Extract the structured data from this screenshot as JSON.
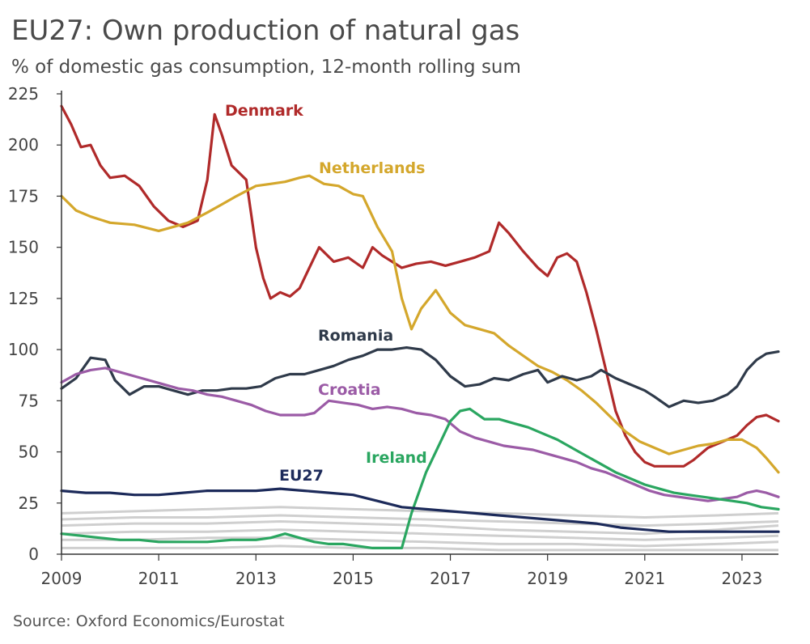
{
  "title": "EU27: Own production of natural gas",
  "subtitle": "% of domestic gas consumption, 12-month rolling sum",
  "source": "Source: Oxford Economics/Eurostat",
  "chart_data": {
    "type": "line",
    "title": "EU27: Own production of natural gas",
    "subtitle": "% of domestic gas consumption, 12-month rolling sum",
    "xlabel": "",
    "ylabel": "",
    "xlim": [
      2009.0,
      2023.75
    ],
    "ylim": [
      0,
      225
    ],
    "x_ticks": [
      "2009",
      "2011",
      "2013",
      "2015",
      "2017",
      "2019",
      "2021",
      "2023"
    ],
    "y_ticks": [
      "0",
      "25",
      "50",
      "75",
      "100",
      "125",
      "150",
      "175",
      "200",
      "225"
    ],
    "grid": false,
    "legend": "inline labels",
    "series": [
      {
        "name": "Denmark",
        "color": "#b02a2a",
        "x": [
          2009.0,
          2009.2,
          2009.4,
          2009.6,
          2009.8,
          2010.0,
          2010.3,
          2010.6,
          2010.9,
          2011.2,
          2011.5,
          2011.8,
          2012.0,
          2012.15,
          2012.3,
          2012.5,
          2012.8,
          2013.0,
          2013.15,
          2013.3,
          2013.5,
          2013.7,
          2013.9,
          2014.1,
          2014.3,
          2014.6,
          2014.9,
          2015.2,
          2015.4,
          2015.6,
          2015.8,
          2016.0,
          2016.3,
          2016.6,
          2016.9,
          2017.2,
          2017.5,
          2017.8,
          2018.0,
          2018.2,
          2018.5,
          2018.8,
          2019.0,
          2019.2,
          2019.4,
          2019.6,
          2019.8,
          2020.0,
          2020.2,
          2020.4,
          2020.6,
          2020.8,
          2021.0,
          2021.2,
          2021.5,
          2021.8,
          2022.0,
          2022.3,
          2022.6,
          2022.9,
          2023.1,
          2023.3,
          2023.5,
          2023.75
        ],
        "values": [
          219,
          210,
          199,
          200,
          190,
          184,
          185,
          180,
          170,
          163,
          160,
          163,
          183,
          215,
          205,
          190,
          183,
          150,
          135,
          125,
          128,
          126,
          130,
          140,
          150,
          143,
          145,
          140,
          150,
          146,
          143,
          140,
          142,
          143,
          141,
          143,
          145,
          148,
          162,
          157,
          148,
          140,
          136,
          145,
          147,
          143,
          128,
          110,
          90,
          70,
          58,
          50,
          45,
          43,
          43,
          43,
          46,
          52,
          55,
          58,
          63,
          67,
          68,
          65
        ]
      },
      {
        "name": "Netherlands",
        "color": "#d4a72c",
        "x": [
          2009.0,
          2009.3,
          2009.6,
          2010.0,
          2010.5,
          2011.0,
          2011.3,
          2011.6,
          2012.0,
          2012.3,
          2012.6,
          2013.0,
          2013.3,
          2013.6,
          2013.9,
          2014.1,
          2014.4,
          2014.7,
          2015.0,
          2015.2,
          2015.5,
          2015.8,
          2016.0,
          2016.2,
          2016.4,
          2016.7,
          2017.0,
          2017.3,
          2017.6,
          2017.9,
          2018.2,
          2018.5,
          2018.8,
          2019.1,
          2019.4,
          2019.7,
          2020.0,
          2020.3,
          2020.6,
          2020.9,
          2021.2,
          2021.5,
          2021.8,
          2022.1,
          2022.4,
          2022.7,
          2023.0,
          2023.3,
          2023.5,
          2023.75
        ],
        "values": [
          175,
          168,
          165,
          162,
          161,
          158,
          160,
          162,
          167,
          171,
          175,
          180,
          181,
          182,
          184,
          185,
          181,
          180,
          176,
          175,
          160,
          148,
          125,
          110,
          120,
          129,
          118,
          112,
          110,
          108,
          102,
          97,
          92,
          89,
          85,
          80,
          74,
          67,
          60,
          55,
          52,
          49,
          51,
          53,
          54,
          56,
          56,
          52,
          47,
          40
        ]
      },
      {
        "name": "Romania",
        "color": "#2f3a4a",
        "x": [
          2009.0,
          2009.3,
          2009.6,
          2009.9,
          2010.1,
          2010.4,
          2010.7,
          2011.0,
          2011.3,
          2011.6,
          2011.9,
          2012.2,
          2012.5,
          2012.8,
          2013.1,
          2013.4,
          2013.7,
          2014.0,
          2014.3,
          2014.6,
          2014.9,
          2015.2,
          2015.5,
          2015.8,
          2016.1,
          2016.4,
          2016.7,
          2017.0,
          2017.3,
          2017.6,
          2017.9,
          2018.2,
          2018.5,
          2018.8,
          2019.0,
          2019.3,
          2019.6,
          2019.9,
          2020.1,
          2020.4,
          2020.7,
          2021.0,
          2021.2,
          2021.5,
          2021.8,
          2022.1,
          2022.4,
          2022.7,
          2022.9,
          2023.1,
          2023.3,
          2023.5,
          2023.75
        ],
        "values": [
          81,
          86,
          96,
          95,
          85,
          78,
          82,
          82,
          80,
          78,
          80,
          80,
          81,
          81,
          82,
          86,
          88,
          88,
          90,
          92,
          95,
          97,
          100,
          100,
          101,
          100,
          95,
          87,
          82,
          83,
          86,
          85,
          88,
          90,
          84,
          87,
          85,
          87,
          90,
          86,
          83,
          80,
          77,
          72,
          75,
          74,
          75,
          78,
          82,
          90,
          95,
          98,
          99
        ]
      },
      {
        "name": "Croatia",
        "color": "#9b5ba6",
        "x": [
          2009.0,
          2009.3,
          2009.6,
          2009.9,
          2010.2,
          2010.5,
          2010.8,
          2011.1,
          2011.4,
          2011.7,
          2012.0,
          2012.3,
          2012.6,
          2012.9,
          2013.2,
          2013.5,
          2013.8,
          2014.0,
          2014.2,
          2014.5,
          2014.8,
          2015.1,
          2015.4,
          2015.7,
          2016.0,
          2016.3,
          2016.6,
          2016.9,
          2017.2,
          2017.5,
          2017.8,
          2018.1,
          2018.4,
          2018.7,
          2019.0,
          2019.3,
          2019.6,
          2019.9,
          2020.2,
          2020.5,
          2020.8,
          2021.1,
          2021.4,
          2021.7,
          2022.0,
          2022.3,
          2022.6,
          2022.9,
          2023.1,
          2023.3,
          2023.5,
          2023.75
        ],
        "values": [
          84,
          88,
          90,
          91,
          89,
          87,
          85,
          83,
          81,
          80,
          78,
          77,
          75,
          73,
          70,
          68,
          68,
          68,
          69,
          75,
          74,
          73,
          71,
          72,
          71,
          69,
          68,
          66,
          60,
          57,
          55,
          53,
          52,
          51,
          49,
          47,
          45,
          42,
          40,
          37,
          34,
          31,
          29,
          28,
          27,
          26,
          27,
          28,
          30,
          31,
          30,
          28
        ]
      },
      {
        "name": "Ireland",
        "color": "#2aa660",
        "x": [
          2009.0,
          2009.4,
          2009.8,
          2010.2,
          2010.6,
          2011.0,
          2011.5,
          2012.0,
          2012.5,
          2013.0,
          2013.3,
          2013.6,
          2013.9,
          2014.2,
          2014.5,
          2014.8,
          2015.1,
          2015.4,
          2015.7,
          2016.0,
          2016.2,
          2016.5,
          2016.8,
          2017.0,
          2017.2,
          2017.4,
          2017.7,
          2018.0,
          2018.3,
          2018.6,
          2018.9,
          2019.2,
          2019.5,
          2019.8,
          2020.1,
          2020.4,
          2020.7,
          2021.0,
          2021.3,
          2021.6,
          2021.9,
          2022.2,
          2022.5,
          2022.8,
          2023.1,
          2023.4,
          2023.75
        ],
        "values": [
          10,
          9,
          8,
          7,
          7,
          6,
          6,
          6,
          7,
          7,
          8,
          10,
          8,
          6,
          5,
          5,
          4,
          3,
          3,
          3,
          20,
          40,
          55,
          65,
          70,
          71,
          66,
          66,
          64,
          62,
          59,
          56,
          52,
          48,
          44,
          40,
          37,
          34,
          32,
          30,
          29,
          28,
          27,
          26,
          25,
          23,
          22
        ]
      },
      {
        "name": "EU27",
        "color": "#1c2a5a",
        "x": [
          2009.0,
          2009.5,
          2010.0,
          2010.5,
          2011.0,
          2011.5,
          2012.0,
          2012.5,
          2013.0,
          2013.5,
          2014.0,
          2014.5,
          2015.0,
          2015.5,
          2016.0,
          2016.5,
          2017.0,
          2017.5,
          2018.0,
          2018.5,
          2019.0,
          2019.5,
          2020.0,
          2020.5,
          2021.0,
          2021.5,
          2022.0,
          2022.5,
          2023.0,
          2023.5,
          2023.75
        ],
        "values": [
          31,
          30,
          30,
          29,
          29,
          30,
          31,
          31,
          31,
          32,
          31,
          30,
          29,
          26,
          23,
          22,
          21,
          20,
          19,
          18,
          17,
          16,
          15,
          13,
          12,
          11,
          11,
          11,
          11,
          11,
          11
        ]
      }
    ]
  },
  "labels": {
    "denmark": "Denmark",
    "netherlands": "Netherlands",
    "romania": "Romania",
    "croatia": "Croatia",
    "ireland": "Ireland",
    "eu27": "EU27"
  },
  "background_lines": {
    "color": "#cfcfcf",
    "x": [
      2009.0,
      2010.5,
      2012.0,
      2013.5,
      2015.0,
      2016.5,
      2018.0,
      2019.5,
      2021.0,
      2022.5,
      2023.75
    ],
    "lines": [
      [
        20,
        21,
        22,
        23,
        22,
        21,
        20,
        19,
        18,
        19,
        20
      ],
      [
        17,
        18,
        18,
        19,
        18,
        17,
        16,
        15,
        14,
        15,
        16
      ],
      [
        14,
        15,
        15,
        16,
        15,
        14,
        12,
        11,
        10,
        12,
        14
      ],
      [
        10,
        11,
        11,
        12,
        11,
        10,
        9,
        8,
        7,
        8,
        9
      ],
      [
        7,
        7,
        8,
        8,
        7,
        6,
        5,
        5,
        4,
        5,
        6
      ],
      [
        3,
        3,
        3,
        4,
        3,
        3,
        2,
        2,
        2,
        2,
        2
      ]
    ]
  }
}
